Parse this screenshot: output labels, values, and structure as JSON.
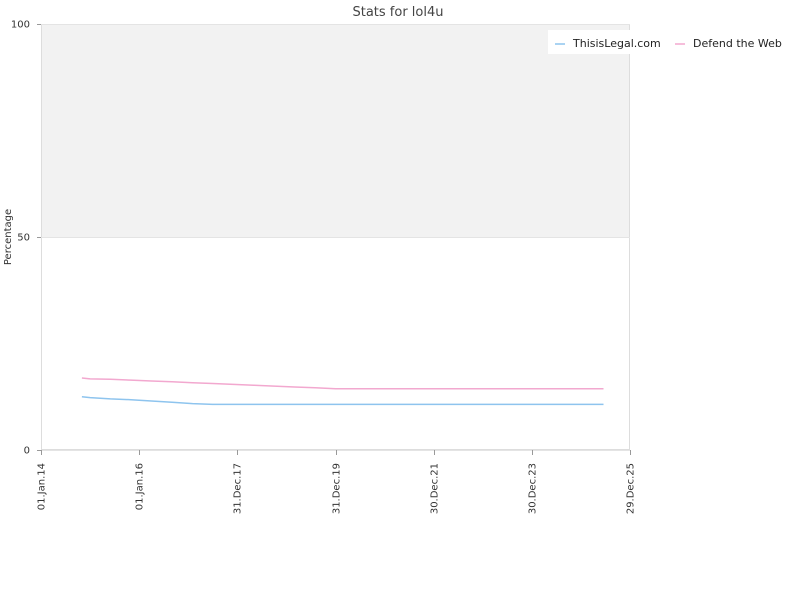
{
  "chart_data": {
    "type": "line",
    "title": "Stats for lol4u",
    "xlabel": "",
    "ylabel": "Percentage",
    "ylim": [
      0,
      100
    ],
    "y_ticks": [
      0,
      50,
      100
    ],
    "x_ticks": [
      "01.Jan.14",
      "01.Jan.16",
      "31.Dec.17",
      "31.Dec.19",
      "30.Dec.21",
      "30.Dec.23",
      "29.Dec.25"
    ],
    "x_tick_dates": [
      "2014-01-01",
      "2016-01-01",
      "2017-12-31",
      "2019-12-31",
      "2021-12-30",
      "2023-12-30",
      "2025-12-29"
    ],
    "xlim": [
      "2014-01-01",
      "2025-12-29"
    ],
    "grid": true,
    "legend_position": "top-right",
    "background_band": {
      "from": 50,
      "to": 100,
      "color": "#f2f2f2"
    },
    "series": [
      {
        "name": "ThisisLegal.com",
        "color": "#8ec4ee",
        "points": [
          [
            "2014-11-01",
            12.5
          ],
          [
            "2015-01-01",
            12.3
          ],
          [
            "2015-06-01",
            12.0
          ],
          [
            "2015-11-01",
            11.8
          ],
          [
            "2016-04-01",
            11.5
          ],
          [
            "2016-09-01",
            11.2
          ],
          [
            "2017-02-01",
            10.9
          ],
          [
            "2017-07-01",
            10.7
          ],
          [
            "2018-01-01",
            10.7
          ],
          [
            "2019-01-01",
            10.7
          ],
          [
            "2020-01-01",
            10.7
          ],
          [
            "2021-01-01",
            10.7
          ],
          [
            "2022-01-01",
            10.7
          ],
          [
            "2023-01-01",
            10.7
          ],
          [
            "2024-01-01",
            10.7
          ],
          [
            "2025-06-15",
            10.7
          ]
        ]
      },
      {
        "name": "Defend the Web",
        "color": "#f2a8cf",
        "points": [
          [
            "2014-11-01",
            16.9
          ],
          [
            "2015-01-01",
            16.7
          ],
          [
            "2015-06-01",
            16.6
          ],
          [
            "2015-11-01",
            16.4
          ],
          [
            "2016-04-01",
            16.2
          ],
          [
            "2016-09-01",
            16.0
          ],
          [
            "2017-02-01",
            15.8
          ],
          [
            "2017-07-01",
            15.6
          ],
          [
            "2017-12-01",
            15.4
          ],
          [
            "2018-05-01",
            15.2
          ],
          [
            "2018-10-01",
            15.0
          ],
          [
            "2019-03-01",
            14.8
          ],
          [
            "2019-08-01",
            14.6
          ],
          [
            "2020-01-01",
            14.4
          ],
          [
            "2021-01-01",
            14.4
          ],
          [
            "2022-01-01",
            14.4
          ],
          [
            "2023-01-01",
            14.4
          ],
          [
            "2024-01-01",
            14.4
          ],
          [
            "2025-06-15",
            14.4
          ]
        ]
      }
    ]
  },
  "colors": {
    "plot_border": "#dddddd",
    "grid": "#e4e4e4",
    "legend_bg": "#ffffff"
  }
}
